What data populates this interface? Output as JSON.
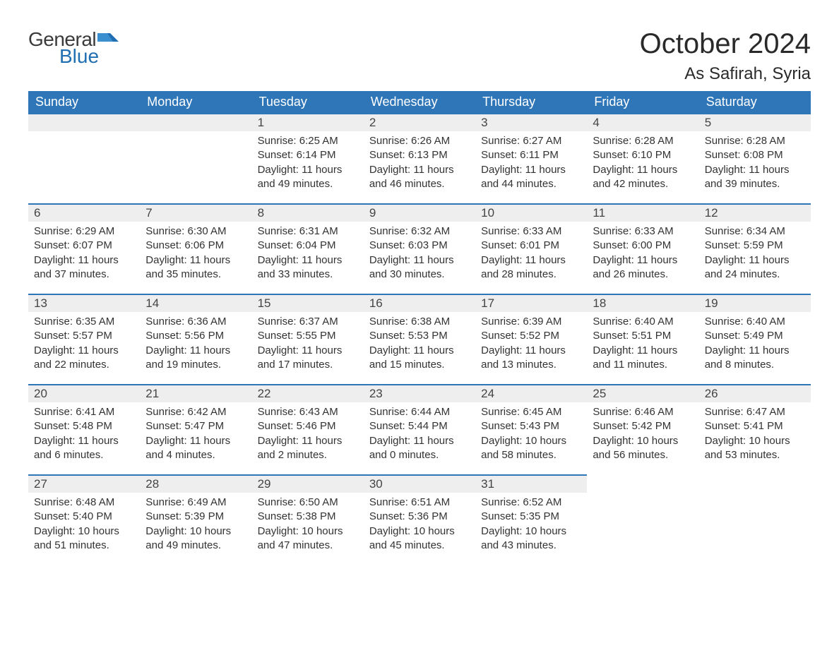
{
  "logo": {
    "word1": "General",
    "word2": "Blue"
  },
  "title": "October 2024",
  "location": "As Safirah, Syria",
  "colors": {
    "header_bg": "#2f76b9",
    "header_text": "#ffffff",
    "daynum_bg": "#eeeeee",
    "daynum_border": "#2f76b9",
    "body_text": "#333333",
    "logo_blue": "#1f6fb2",
    "page_bg": "#ffffff"
  },
  "weekdays": [
    "Sunday",
    "Monday",
    "Tuesday",
    "Wednesday",
    "Thursday",
    "Friday",
    "Saturday"
  ],
  "weeks": [
    [
      null,
      null,
      {
        "d": "1",
        "sr": "6:25 AM",
        "ss": "6:14 PM",
        "dl": "11 hours and 49 minutes."
      },
      {
        "d": "2",
        "sr": "6:26 AM",
        "ss": "6:13 PM",
        "dl": "11 hours and 46 minutes."
      },
      {
        "d": "3",
        "sr": "6:27 AM",
        "ss": "6:11 PM",
        "dl": "11 hours and 44 minutes."
      },
      {
        "d": "4",
        "sr": "6:28 AM",
        "ss": "6:10 PM",
        "dl": "11 hours and 42 minutes."
      },
      {
        "d": "5",
        "sr": "6:28 AM",
        "ss": "6:08 PM",
        "dl": "11 hours and 39 minutes."
      }
    ],
    [
      {
        "d": "6",
        "sr": "6:29 AM",
        "ss": "6:07 PM",
        "dl": "11 hours and 37 minutes."
      },
      {
        "d": "7",
        "sr": "6:30 AM",
        "ss": "6:06 PM",
        "dl": "11 hours and 35 minutes."
      },
      {
        "d": "8",
        "sr": "6:31 AM",
        "ss": "6:04 PM",
        "dl": "11 hours and 33 minutes."
      },
      {
        "d": "9",
        "sr": "6:32 AM",
        "ss": "6:03 PM",
        "dl": "11 hours and 30 minutes."
      },
      {
        "d": "10",
        "sr": "6:33 AM",
        "ss": "6:01 PM",
        "dl": "11 hours and 28 minutes."
      },
      {
        "d": "11",
        "sr": "6:33 AM",
        "ss": "6:00 PM",
        "dl": "11 hours and 26 minutes."
      },
      {
        "d": "12",
        "sr": "6:34 AM",
        "ss": "5:59 PM",
        "dl": "11 hours and 24 minutes."
      }
    ],
    [
      {
        "d": "13",
        "sr": "6:35 AM",
        "ss": "5:57 PM",
        "dl": "11 hours and 22 minutes."
      },
      {
        "d": "14",
        "sr": "6:36 AM",
        "ss": "5:56 PM",
        "dl": "11 hours and 19 minutes."
      },
      {
        "d": "15",
        "sr": "6:37 AM",
        "ss": "5:55 PM",
        "dl": "11 hours and 17 minutes."
      },
      {
        "d": "16",
        "sr": "6:38 AM",
        "ss": "5:53 PM",
        "dl": "11 hours and 15 minutes."
      },
      {
        "d": "17",
        "sr": "6:39 AM",
        "ss": "5:52 PM",
        "dl": "11 hours and 13 minutes."
      },
      {
        "d": "18",
        "sr": "6:40 AM",
        "ss": "5:51 PM",
        "dl": "11 hours and 11 minutes."
      },
      {
        "d": "19",
        "sr": "6:40 AM",
        "ss": "5:49 PM",
        "dl": "11 hours and 8 minutes."
      }
    ],
    [
      {
        "d": "20",
        "sr": "6:41 AM",
        "ss": "5:48 PM",
        "dl": "11 hours and 6 minutes."
      },
      {
        "d": "21",
        "sr": "6:42 AM",
        "ss": "5:47 PM",
        "dl": "11 hours and 4 minutes."
      },
      {
        "d": "22",
        "sr": "6:43 AM",
        "ss": "5:46 PM",
        "dl": "11 hours and 2 minutes."
      },
      {
        "d": "23",
        "sr": "6:44 AM",
        "ss": "5:44 PM",
        "dl": "11 hours and 0 minutes."
      },
      {
        "d": "24",
        "sr": "6:45 AM",
        "ss": "5:43 PM",
        "dl": "10 hours and 58 minutes."
      },
      {
        "d": "25",
        "sr": "6:46 AM",
        "ss": "5:42 PM",
        "dl": "10 hours and 56 minutes."
      },
      {
        "d": "26",
        "sr": "6:47 AM",
        "ss": "5:41 PM",
        "dl": "10 hours and 53 minutes."
      }
    ],
    [
      {
        "d": "27",
        "sr": "6:48 AM",
        "ss": "5:40 PM",
        "dl": "10 hours and 51 minutes."
      },
      {
        "d": "28",
        "sr": "6:49 AM",
        "ss": "5:39 PM",
        "dl": "10 hours and 49 minutes."
      },
      {
        "d": "29",
        "sr": "6:50 AM",
        "ss": "5:38 PM",
        "dl": "10 hours and 47 minutes."
      },
      {
        "d": "30",
        "sr": "6:51 AM",
        "ss": "5:36 PM",
        "dl": "10 hours and 45 minutes."
      },
      {
        "d": "31",
        "sr": "6:52 AM",
        "ss": "5:35 PM",
        "dl": "10 hours and 43 minutes."
      },
      null,
      null
    ]
  ],
  "labels": {
    "sunrise": "Sunrise: ",
    "sunset": "Sunset: ",
    "daylight": "Daylight: "
  }
}
